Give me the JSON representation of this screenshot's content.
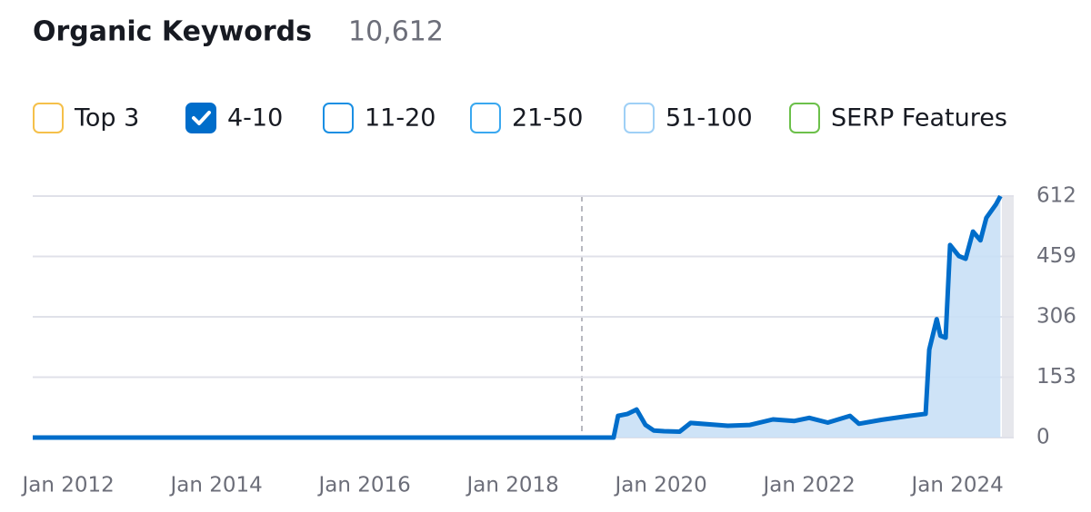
{
  "header": {
    "title": "Organic Keywords",
    "value": "10,612"
  },
  "filters": [
    {
      "label": "Top 3",
      "color": "#f5c04a",
      "checked": false
    },
    {
      "label": "4-10",
      "color": "#006dca",
      "checked": true
    },
    {
      "label": "11-20",
      "color": "#1a8fe3",
      "checked": false
    },
    {
      "label": "21-50",
      "color": "#3aa8f0",
      "checked": false
    },
    {
      "label": "51-100",
      "color": "#9fd0f6",
      "checked": false
    },
    {
      "label": "SERP Features",
      "color": "#6cc04a",
      "checked": false
    }
  ],
  "chart_data": {
    "type": "line",
    "color": "#006dca",
    "area_color": "#c9e0f6",
    "x": [
      2011.52,
      2012.3,
      2013,
      2014,
      2015,
      2016,
      2017,
      2018,
      2019,
      2019.36,
      2019.42,
      2019.55,
      2019.67,
      2019.79,
      2019.9,
      2020.04,
      2020.25,
      2020.4,
      2020.7,
      2020.9,
      2021.2,
      2021.51,
      2021.8,
      2022.0,
      2022.25,
      2022.55,
      2022.67,
      2022.98,
      2023.35,
      2023.57,
      2023.62,
      2023.72,
      2023.77,
      2023.84,
      2023.9,
      2024.02,
      2024.11,
      2024.21,
      2024.31,
      2024.39,
      2024.52,
      2024.58
    ],
    "values": [
      0,
      0,
      0,
      0,
      0,
      0,
      0,
      0,
      0,
      0,
      55,
      60,
      71,
      32,
      18,
      16,
      15,
      37,
      33,
      30,
      32,
      46,
      42,
      50,
      38,
      55,
      35,
      45,
      55,
      60,
      223,
      300,
      258,
      253,
      488,
      460,
      453,
      522,
      500,
      557,
      591,
      612
    ],
    "xlim": [
      2011.52,
      2024.6
    ],
    "xticks": [
      {
        "value": 2012,
        "label": "Jan 2012"
      },
      {
        "value": 2014,
        "label": "Jan 2014"
      },
      {
        "value": 2016,
        "label": "Jan 2016"
      },
      {
        "value": 2018,
        "label": "Jan 2018"
      },
      {
        "value": 2020,
        "label": "Jan 2020"
      },
      {
        "value": 2022,
        "label": "Jan 2022"
      },
      {
        "value": 2024,
        "label": "Jan 2024"
      }
    ],
    "ylim": [
      0,
      612
    ],
    "yticks": [
      0,
      153,
      306,
      459,
      612
    ],
    "grid": true
  }
}
